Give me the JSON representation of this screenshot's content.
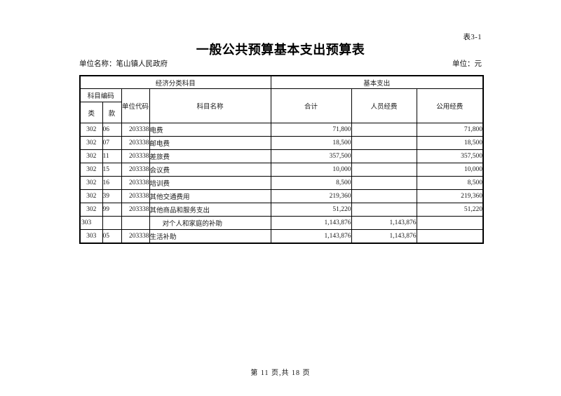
{
  "page": {
    "sheet_label": "表3-1",
    "title": "一般公共预算基本支出预算表",
    "unit_name": "单位名称：笔山镇人民政府",
    "unit": "单位：元",
    "footer": "第 11 页,共 18 页"
  },
  "table": {
    "header": {
      "group_left": "经济分类科目",
      "group_right": "基本支出",
      "subject_code": "科目编码",
      "cls": "类",
      "sec": "款",
      "unit_code": "单位代码",
      "subject_name": "科目名称",
      "total": "合计",
      "personnel": "人员经费",
      "public_funds": "公用经费"
    },
    "rows": [
      {
        "cls": "302",
        "sec": "06",
        "code": "203338",
        "name": "电费",
        "total": "71,800",
        "personnel": "",
        "pub": "71,800",
        "level": "detail"
      },
      {
        "cls": "302",
        "sec": "07",
        "code": "203338",
        "name": "邮电费",
        "total": "18,500",
        "personnel": "",
        "pub": "18,500",
        "level": "detail"
      },
      {
        "cls": "302",
        "sec": "11",
        "code": "203338",
        "name": "差旅费",
        "total": "357,500",
        "personnel": "",
        "pub": "357,500",
        "level": "detail"
      },
      {
        "cls": "302",
        "sec": "15",
        "code": "203338",
        "name": "会议费",
        "total": "10,000",
        "personnel": "",
        "pub": "10,000",
        "level": "detail"
      },
      {
        "cls": "302",
        "sec": "16",
        "code": "203338",
        "name": "培训费",
        "total": "8,500",
        "personnel": "",
        "pub": "8,500",
        "level": "detail"
      },
      {
        "cls": "302",
        "sec": "39",
        "code": "203338",
        "name": "其他交通费用",
        "total": "219,360",
        "personnel": "",
        "pub": "219,360",
        "level": "detail"
      },
      {
        "cls": "302",
        "sec": "99",
        "code": "203338",
        "name": "其他商品和服务支出",
        "total": "51,220",
        "personnel": "",
        "pub": "51,220",
        "level": "detail"
      },
      {
        "cls": "303",
        "sec": "",
        "code": "",
        "name": "对个人和家庭的补助",
        "total": "1,143,876",
        "personnel": "1,143,876",
        "pub": "",
        "level": "summary"
      },
      {
        "cls": "303",
        "sec": "05",
        "code": "203338",
        "name": "生活补助",
        "total": "1,143,876",
        "personnel": "1,143,876",
        "pub": "",
        "level": "detail"
      }
    ]
  }
}
